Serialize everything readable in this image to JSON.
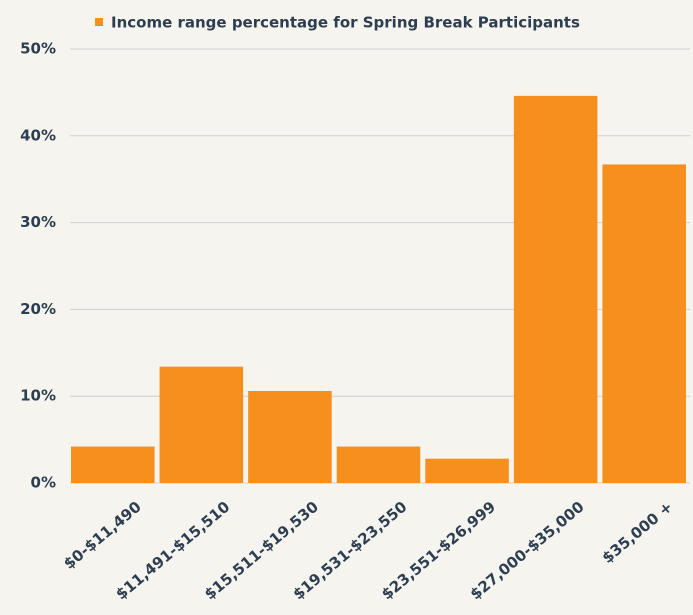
{
  "chart_data": {
    "type": "bar",
    "categories": [
      "$0-$11,490",
      "$11,491-$15,510",
      "$15,511-$19,530",
      "$19,531-$23,550",
      "$23,551-$26,999",
      "$27,000-$35,000",
      "$35,000 +"
    ],
    "series": [
      {
        "name": "Income range percentage for Spring Break Participants",
        "color": "#f78f1e",
        "values": [
          4.2,
          13.4,
          10.6,
          4.2,
          2.8,
          44.6,
          36.7
        ]
      }
    ],
    "ylim": [
      0,
      50
    ],
    "yticks": [
      {
        "value": 0,
        "label": "0%"
      },
      {
        "value": 10,
        "label": "10%"
      },
      {
        "value": 20,
        "label": "20%"
      },
      {
        "value": 30,
        "label": "30%"
      },
      {
        "value": 40,
        "label": "40%"
      },
      {
        "value": 50,
        "label": "50%"
      }
    ],
    "grid": true,
    "legend": "top"
  }
}
